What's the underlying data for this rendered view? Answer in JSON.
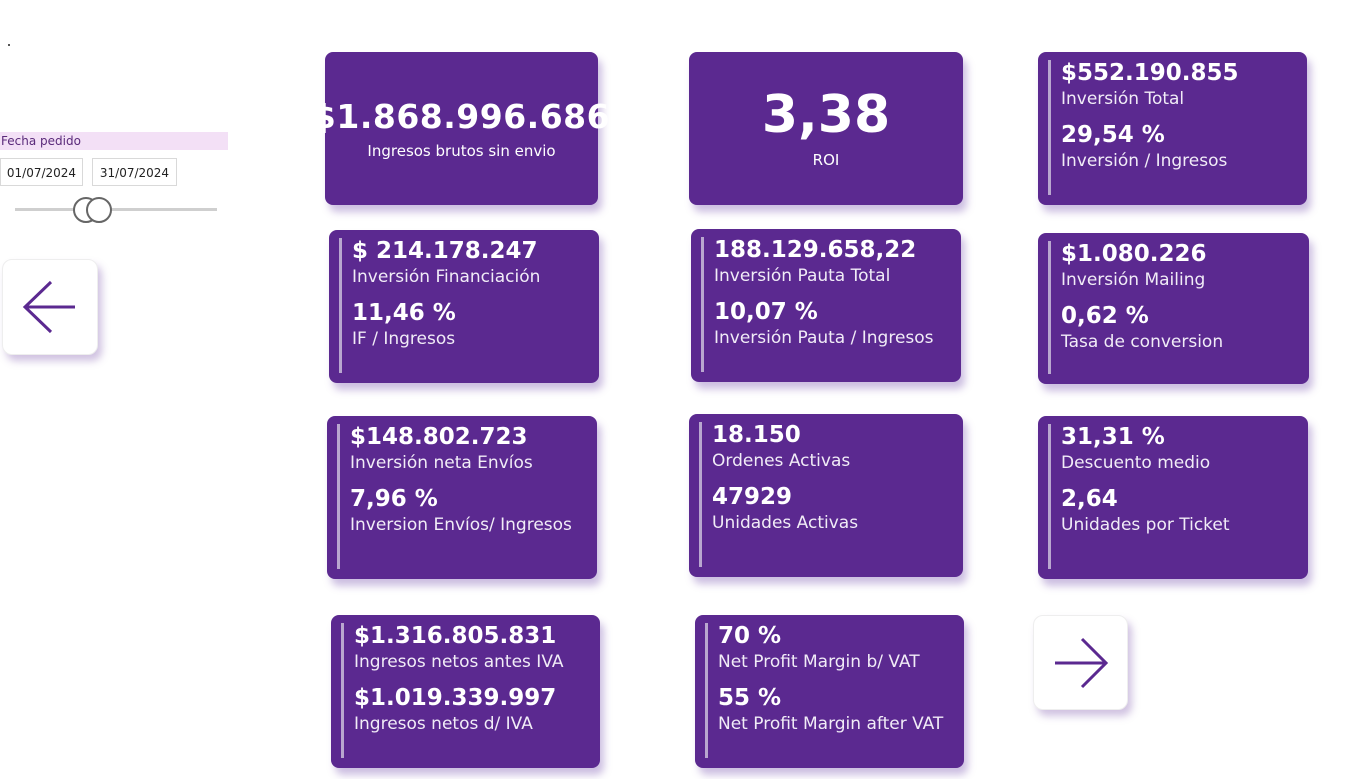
{
  "filter": {
    "label": "Fecha pedido",
    "start_date": "01/07/2024",
    "end_date": "31/07/2024"
  },
  "navigation": {
    "back_icon": "arrow-left-icon",
    "next_icon": "arrow-right-icon"
  },
  "colors": {
    "card_bg": "#5b2990",
    "accent": "#5b2990",
    "slicer_header_bg": "#f3e0f6"
  },
  "kpis": {
    "gross_revenue": {
      "value": "$1.868.996.686",
      "label": "Ingresos brutos sin envio"
    },
    "roi": {
      "value": "3,38",
      "label": "ROI"
    },
    "investment_total": {
      "value": "$552.190.855",
      "label": "Inversión Total",
      "value2": "29,54 %",
      "label2": "Inversión / Ingresos"
    },
    "financing": {
      "value": "$ 214.178.247",
      "label": "Inversión Financiación",
      "value2": "11,46 %",
      "label2": "IF / Ingresos"
    },
    "ads": {
      "value": "188.129.658,22",
      "label": "Inversión Pauta Total",
      "value2": "10,07 %",
      "label2": "Inversión Pauta / Ingresos"
    },
    "mailing": {
      "value": "$1.080.226",
      "label": "Inversión Mailing",
      "value2": "0,62 %",
      "label2": "Tasa de conversion"
    },
    "shipping": {
      "value": "$148.802.723",
      "label": "Inversión neta Envíos",
      "value2": "7,96 %",
      "label2": "Inversion Envíos/ Ingresos"
    },
    "orders": {
      "value": "18.150",
      "label": "Ordenes Activas",
      "value2": "47929",
      "label2": "Unidades Activas"
    },
    "discount": {
      "value": "31,31 %",
      "label": "Descuento medio",
      "value2": "2,64",
      "label2": "Unidades por Ticket"
    },
    "net_revenue": {
      "value": "$1.316.805.831",
      "label": "Ingresos netos antes IVA",
      "value2": "$1.019.339.997",
      "label2": "Ingresos netos d/ IVA"
    },
    "margin": {
      "value": "70 %",
      "label": "Net Profit Margin b/ VAT",
      "value2": "55 %",
      "label2": "Net Profit Margin after VAT"
    }
  }
}
